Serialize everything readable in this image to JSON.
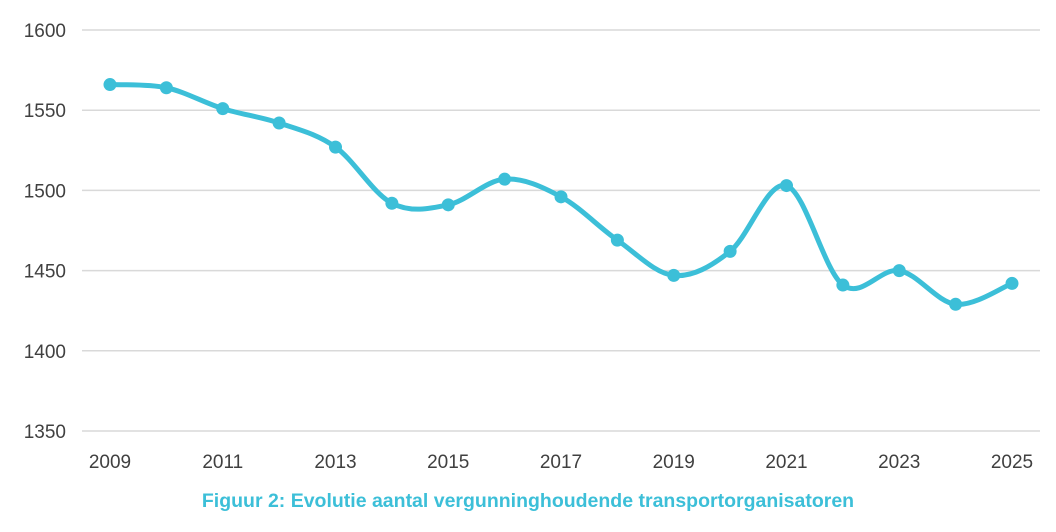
{
  "colors": {
    "series": "#3cbfd8",
    "grid": "#d9d9d9",
    "tick_text": "#404040",
    "caption": "#3cbfd8"
  },
  "caption": "Figuur 2: Evolutie aantal vergunninghoudende transportorganisatoren",
  "chart_data": {
    "type": "line",
    "title": "",
    "xlabel": "",
    "ylabel": "",
    "x": [
      2009,
      2010,
      2011,
      2012,
      2013,
      2014,
      2015,
      2016,
      2017,
      2018,
      2019,
      2020,
      2021,
      2022,
      2023,
      2024,
      2025
    ],
    "series": [
      {
        "values": [
          1566,
          1564,
          1551,
          1542,
          1527,
          1492,
          1491,
          1507,
          1496,
          1469,
          1447,
          1462,
          1503,
          1441,
          1450,
          1429,
          1442
        ],
        "smooth": true,
        "markers": true
      }
    ],
    "x_tick_labels": [
      "2009",
      "2011",
      "2013",
      "2015",
      "2017",
      "2019",
      "2021",
      "2023",
      "2025"
    ],
    "y_tick_labels": [
      "1350",
      "1400",
      "1450",
      "1500",
      "1550",
      "1600"
    ],
    "ylim": [
      1350,
      1600
    ],
    "y_ticks": [
      1350,
      1400,
      1450,
      1500,
      1550,
      1600
    ],
    "grid": "horizontal",
    "legend": "none"
  }
}
